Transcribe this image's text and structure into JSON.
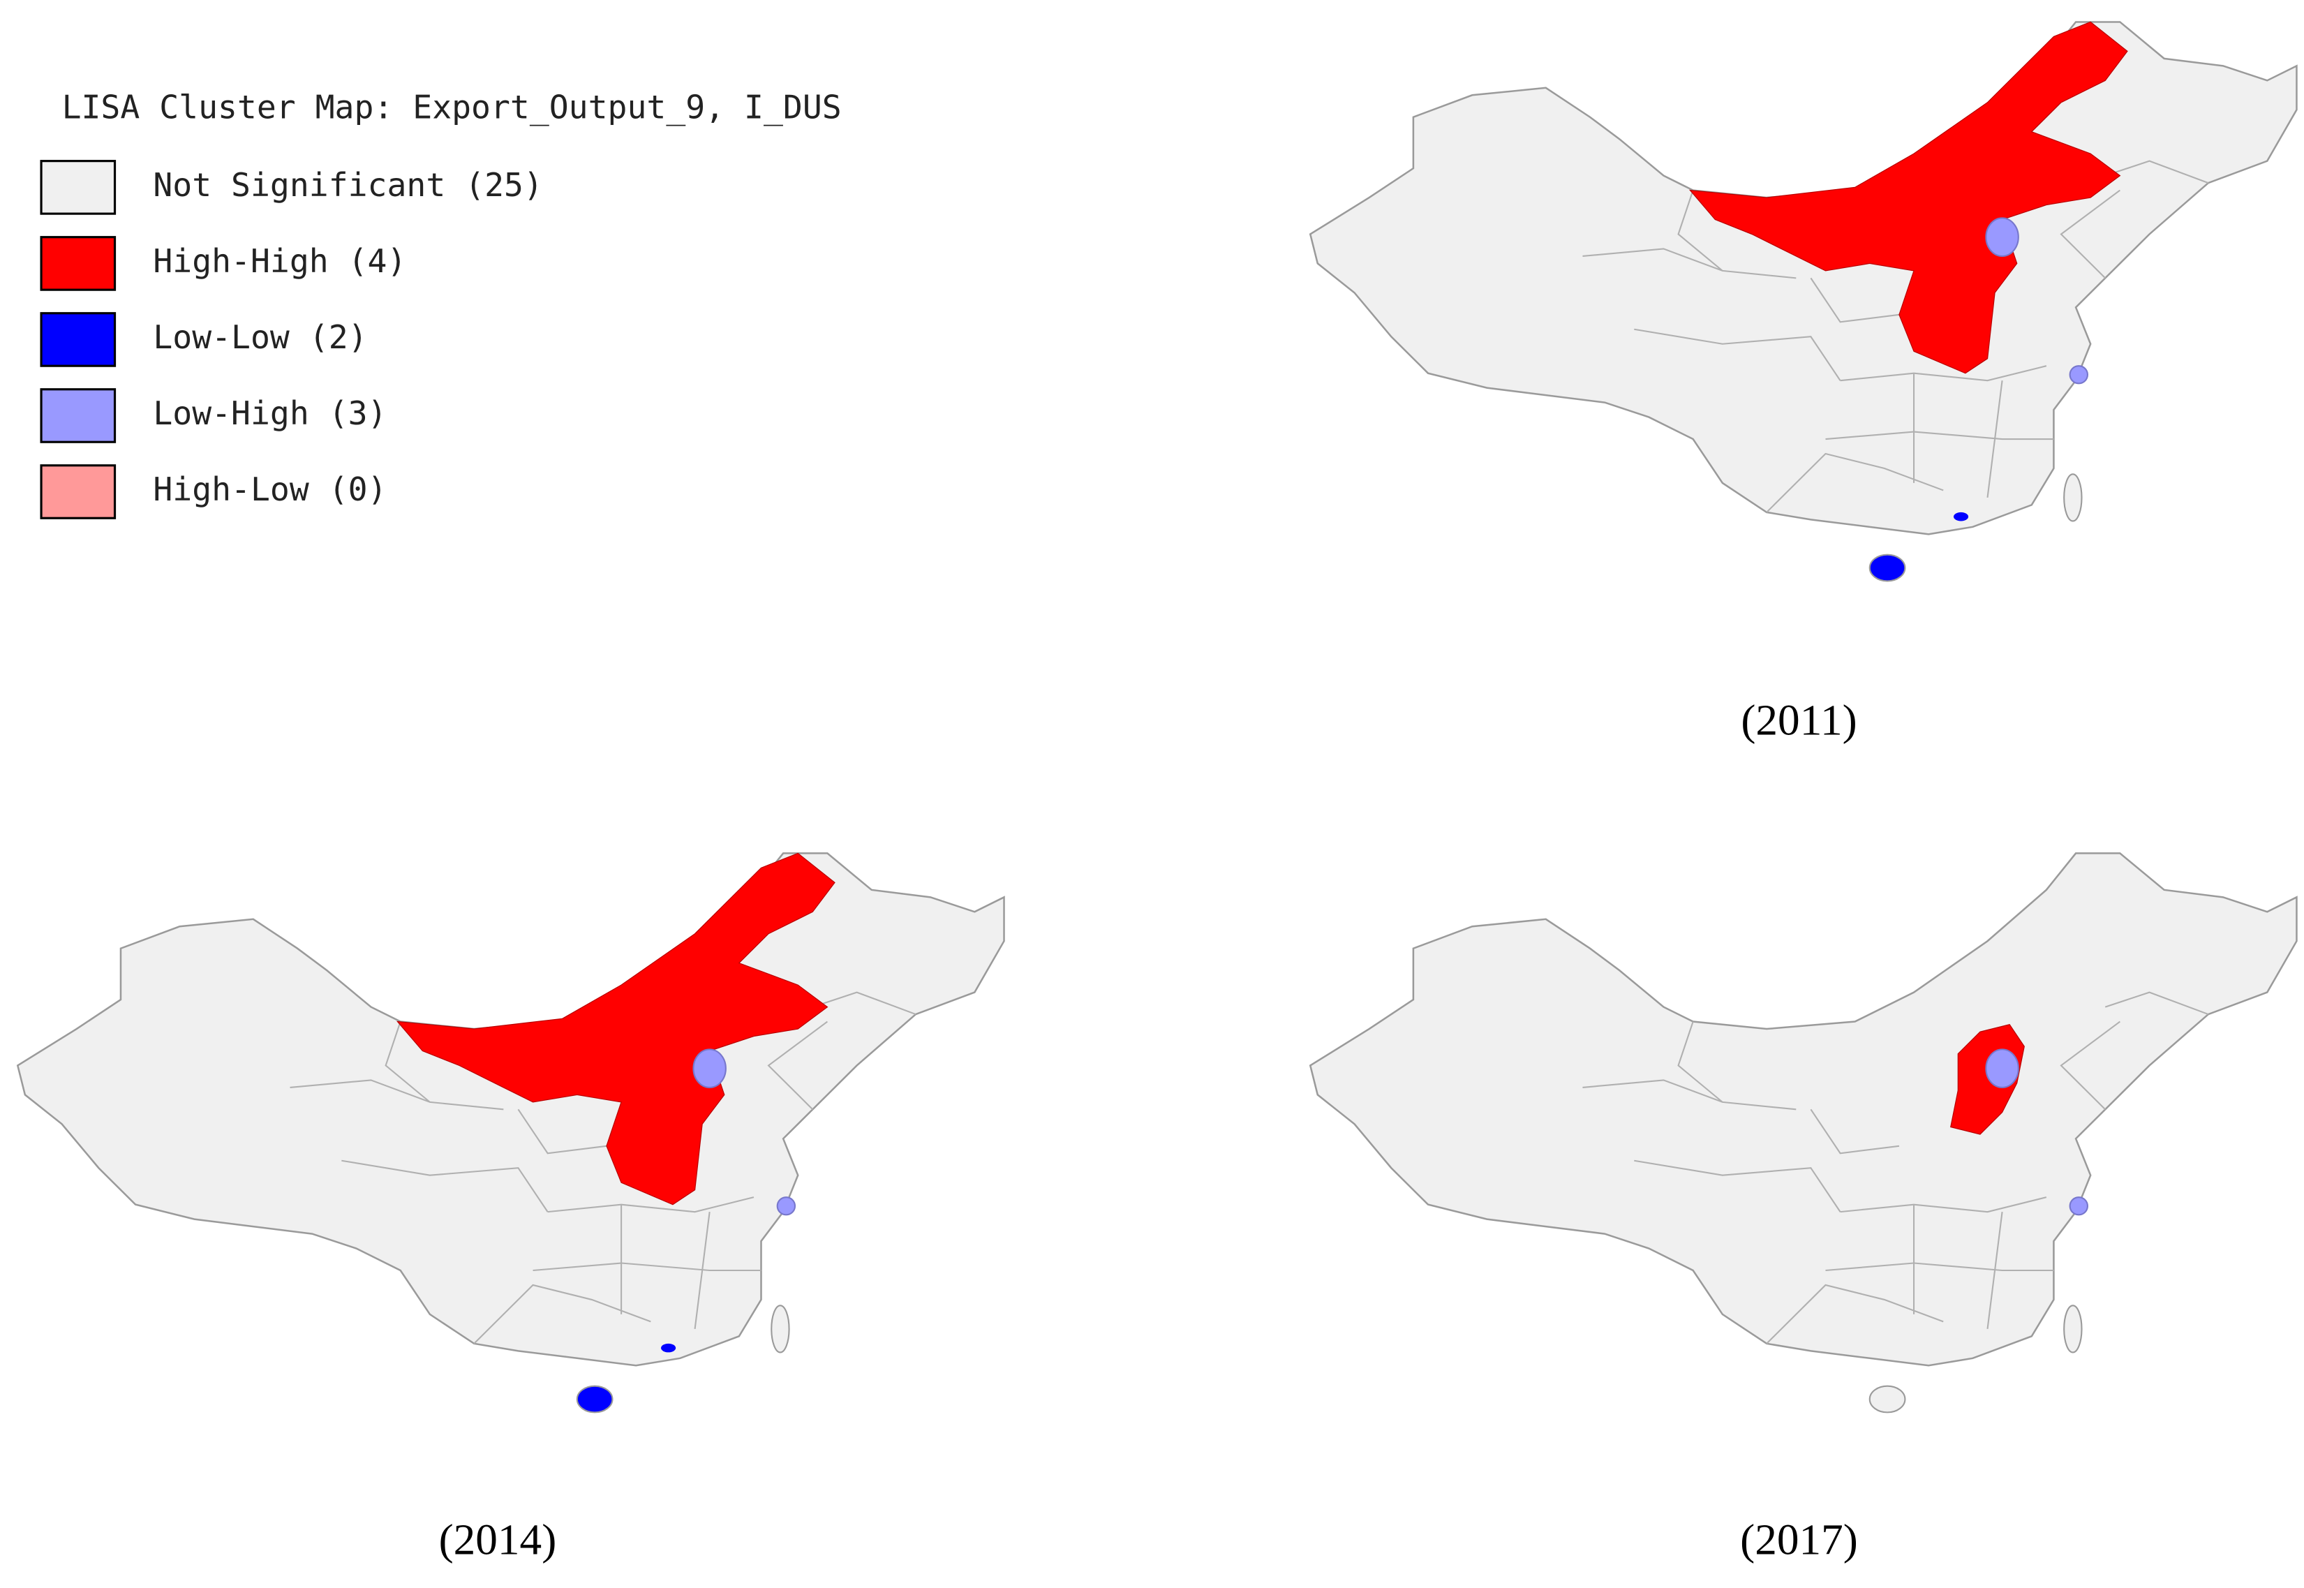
{
  "legend": {
    "title": "LISA Cluster Map: Export_Output_9, I_DUS",
    "items": [
      {
        "label": "Not Significant (25)",
        "color": "#f0f0f0"
      },
      {
        "label": "High-High (4)",
        "color": "#ff0000"
      },
      {
        "label": "Low-Low (2)",
        "color": "#0000ff"
      },
      {
        "label": "Low-High (3)",
        "color": "#9999ff"
      },
      {
        "label": "High-Low (0)",
        "color": "#ff9999"
      }
    ]
  },
  "panels": [
    {
      "caption": "(2011)"
    },
    {
      "caption": "(2014)"
    },
    {
      "caption": "(2017)"
    }
  ]
}
